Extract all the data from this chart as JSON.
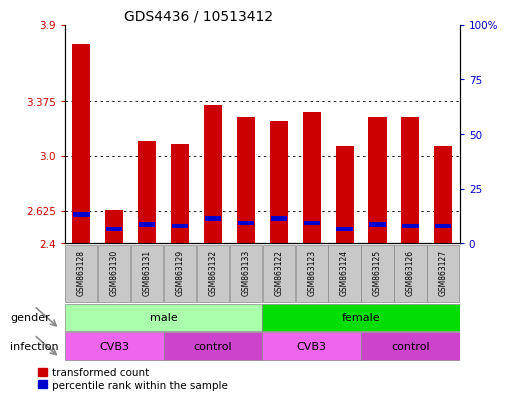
{
  "title": "GDS4436 / 10513412",
  "samples": [
    "GSM863128",
    "GSM863130",
    "GSM863131",
    "GSM863129",
    "GSM863132",
    "GSM863133",
    "GSM863122",
    "GSM863123",
    "GSM863124",
    "GSM863125",
    "GSM863126",
    "GSM863127"
  ],
  "red_values": [
    3.77,
    2.63,
    3.1,
    3.08,
    3.35,
    3.27,
    3.24,
    3.3,
    3.07,
    3.27,
    3.27,
    3.07
  ],
  "blue_values": [
    2.6,
    2.5,
    2.53,
    2.52,
    2.57,
    2.54,
    2.57,
    2.54,
    2.5,
    2.53,
    2.52,
    2.52
  ],
  "ymin": 2.4,
  "ymax": 3.9,
  "yticks_left": [
    2.4,
    2.625,
    3.0,
    3.375,
    3.9
  ],
  "yticks_right_pct": [
    0,
    25,
    50,
    75,
    100
  ],
  "yright_labels": [
    "0",
    "25",
    "50",
    "75",
    "100%"
  ],
  "bar_color": "#cc0000",
  "blue_color": "#0000cc",
  "sample_bg_color": "#c8c8c8",
  "gender_male_color": "#aaffaa",
  "gender_female_color": "#00dd00",
  "infection_cvb3_color": "#ee66ee",
  "infection_control_color": "#cc44cc",
  "bar_width": 0.55,
  "title_fontsize": 10,
  "tick_fontsize": 7.5,
  "sample_fontsize": 5.5,
  "annotation_fontsize": 8
}
